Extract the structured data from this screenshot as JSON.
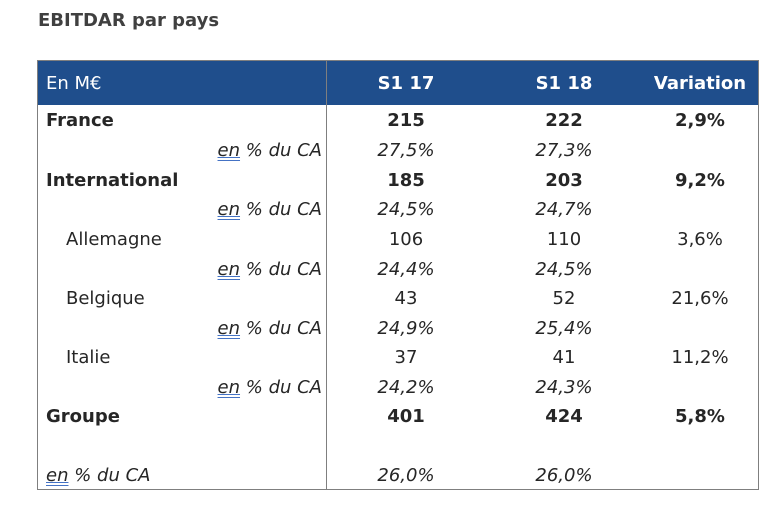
{
  "title": "EBITDAR par pays",
  "header": {
    "label": "En M€",
    "col1": "S1 17",
    "col2": "S1 18",
    "col3": "Variation"
  },
  "pct_label_en": "en",
  "pct_label_rest": " % du CA",
  "rows": {
    "france": {
      "label": "France",
      "s1_17": "215",
      "s1_18": "222",
      "var": "2,9%",
      "pct_17": "27,5%",
      "pct_18": "27,3%"
    },
    "international": {
      "label": "International",
      "s1_17": "185",
      "s1_18": "203",
      "var": "9,2%",
      "pct_17": "24,5%",
      "pct_18": "24,7%"
    },
    "allemagne": {
      "label": "Allemagne",
      "s1_17": "106",
      "s1_18": "110",
      "var": "3,6%",
      "pct_17": "24,4%",
      "pct_18": "24,5%"
    },
    "belgique": {
      "label": "Belgique",
      "s1_17": "43",
      "s1_18": "52",
      "var": "21,6%",
      "pct_17": "24,9%",
      "pct_18": "25,4%"
    },
    "italie": {
      "label": "Italie",
      "s1_17": "37",
      "s1_18": "41",
      "var": "11,2%",
      "pct_17": "24,2%",
      "pct_18": "24,3%"
    },
    "groupe": {
      "label": "Groupe",
      "s1_17": "401",
      "s1_18": "424",
      "var": "5,8%"
    },
    "total_pct": {
      "s1_17": "26,0%",
      "s1_18": "26,0%"
    }
  }
}
